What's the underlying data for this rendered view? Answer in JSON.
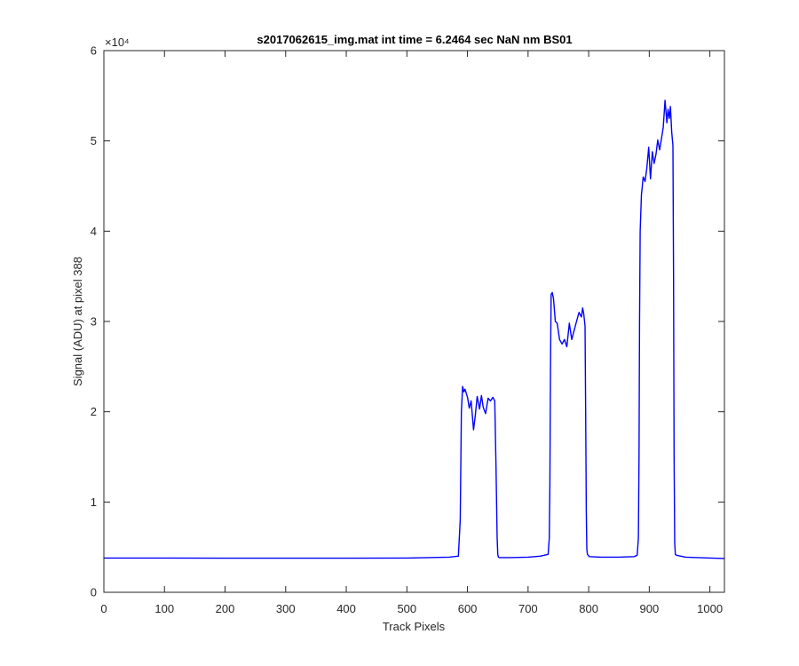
{
  "chart_data": {
    "type": "line",
    "title": "s2017062615_img.mat int time = 6.2464 sec  NaN nm BS01",
    "xlabel": "Track Pixels",
    "ylabel": "Signal (ADU) at pixel 388",
    "xlim": [
      0,
      1024
    ],
    "ylim": [
      0,
      60000
    ],
    "x_ticks": [
      0,
      100,
      200,
      300,
      400,
      500,
      600,
      700,
      800,
      900,
      1000
    ],
    "y_ticks": [
      0,
      10000,
      20000,
      30000,
      40000,
      50000,
      60000
    ],
    "y_tick_labels": [
      "0",
      "1",
      "2",
      "3",
      "4",
      "5",
      "6"
    ],
    "y_exponent_label": "×10⁴",
    "grid": false,
    "line_color": "#0000ff",
    "series": [
      {
        "x": [
          0,
          100,
          200,
          300,
          400,
          500,
          570,
          585,
          588,
          590,
          592,
          594,
          596,
          600,
          603,
          606,
          610,
          613,
          616,
          620,
          623,
          626,
          630,
          634,
          638,
          642,
          645,
          647,
          649,
          650,
          651,
          653,
          656,
          670,
          700,
          720,
          733,
          735,
          736,
          737,
          738,
          740,
          742,
          745,
          748,
          752,
          756,
          760,
          764,
          768,
          772,
          776,
          780,
          784,
          788,
          790,
          792,
          794,
          795,
          796,
          797,
          798,
          801,
          820,
          850,
          875,
          880,
          882,
          883,
          884,
          885,
          887,
          890,
          893,
          896,
          899,
          902,
          905,
          908,
          911,
          914,
          917,
          920,
          923,
          926,
          929,
          931,
          933,
          935,
          937,
          939,
          940,
          941,
          942,
          943,
          945,
          960,
          1000,
          1024
        ],
        "y": [
          3800,
          3800,
          3780,
          3780,
          3780,
          3800,
          3900,
          4000,
          8000,
          20000,
          22800,
          22200,
          22500,
          21600,
          20400,
          21200,
          18000,
          19600,
          21700,
          20300,
          21800,
          20500,
          19800,
          21500,
          21200,
          21600,
          21200,
          14000,
          6000,
          4200,
          3900,
          3850,
          3850,
          3850,
          3900,
          4000,
          4200,
          6000,
          12000,
          25000,
          33000,
          33200,
          32500,
          30000,
          29800,
          28000,
          27500,
          28000,
          27200,
          29800,
          28000,
          29000,
          30000,
          31000,
          30500,
          31500,
          30800,
          29500,
          20000,
          9000,
          4800,
          4200,
          3950,
          3900,
          3900,
          3950,
          4100,
          6000,
          15000,
          30000,
          40000,
          44000,
          46000,
          45500,
          47000,
          49300,
          45800,
          48800,
          47500,
          48500,
          50100,
          49000,
          50200,
          51500,
          54500,
          52000,
          53500,
          52500,
          53800,
          51000,
          49500,
          35000,
          15000,
          5500,
          4200,
          4100,
          3900,
          3800,
          3750
        ]
      }
    ]
  }
}
